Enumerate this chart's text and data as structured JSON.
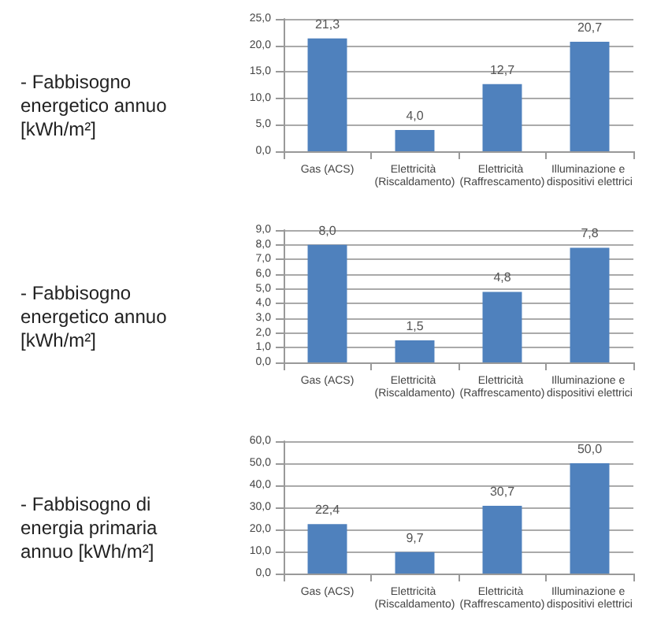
{
  "chart_data": [
    {
      "type": "bar",
      "title": "- Fabbisogno energetico annuo [kWh/m²]",
      "categories": [
        "Gas (ACS)",
        "Elettricità (Riscaldamento)",
        "Elettricità (Raffrescamento)",
        "Illuminazione e dispositivi elettrici"
      ],
      "values": [
        21.3,
        4.0,
        12.7,
        20.7
      ],
      "value_labels": [
        "21,3",
        "4,0",
        "12,7",
        "20,7"
      ],
      "color": "#4f81bd",
      "ylim": [
        0,
        25
      ],
      "yticks": [
        {
          "value": 0,
          "label": "0,0"
        },
        {
          "value": 5,
          "label": "5,0"
        },
        {
          "value": 10,
          "label": "10,0"
        },
        {
          "value": 15,
          "label": "15,0"
        },
        {
          "value": 20,
          "label": "20,0"
        },
        {
          "value": 25,
          "label": "25,0"
        }
      ],
      "grid": "y"
    },
    {
      "type": "bar",
      "title": "- Fabbisogno energetico annuo [kWh/m²]",
      "categories": [
        "Gas (ACS)",
        "Elettricità (Riscaldamento)",
        "Elettricità (Raffrescamento)",
        "Illuminazione e dispositivi elettrici"
      ],
      "values": [
        8.0,
        1.5,
        4.8,
        7.8
      ],
      "value_labels": [
        "8,0",
        "1,5",
        "4,8",
        "7,8"
      ],
      "color": "#4f81bd",
      "ylim": [
        0,
        9
      ],
      "yticks": [
        {
          "value": 0,
          "label": "0,0"
        },
        {
          "value": 1,
          "label": "1,0"
        },
        {
          "value": 2,
          "label": "2,0"
        },
        {
          "value": 3,
          "label": "3,0"
        },
        {
          "value": 4,
          "label": "4,0"
        },
        {
          "value": 5,
          "label": "5,0"
        },
        {
          "value": 6,
          "label": "6,0"
        },
        {
          "value": 7,
          "label": "7,0"
        },
        {
          "value": 8,
          "label": "8,0"
        },
        {
          "value": 9,
          "label": "9,0"
        }
      ],
      "grid": "y"
    },
    {
      "type": "bar",
      "title": "- Fabbisogno di energia primaria annuo [kWh/m²]",
      "categories": [
        "Gas (ACS)",
        "Elettricità (Riscaldamento)",
        "Elettricità (Raffrescamento)",
        "Illuminazione e dispositivi elettrici"
      ],
      "values": [
        22.4,
        9.7,
        30.7,
        50.0
      ],
      "value_labels": [
        "22,4",
        "9,7",
        "30,7",
        "50,0"
      ],
      "color": "#4f81bd",
      "ylim": [
        0,
        60
      ],
      "yticks": [
        {
          "value": 0,
          "label": "0,0"
        },
        {
          "value": 10,
          "label": "10,0"
        },
        {
          "value": 20,
          "label": "20,0"
        },
        {
          "value": 30,
          "label": "30,0"
        },
        {
          "value": 40,
          "label": "40,0"
        },
        {
          "value": 50,
          "label": "50,0"
        },
        {
          "value": 60,
          "label": "60,0"
        }
      ],
      "grid": "y"
    }
  ]
}
